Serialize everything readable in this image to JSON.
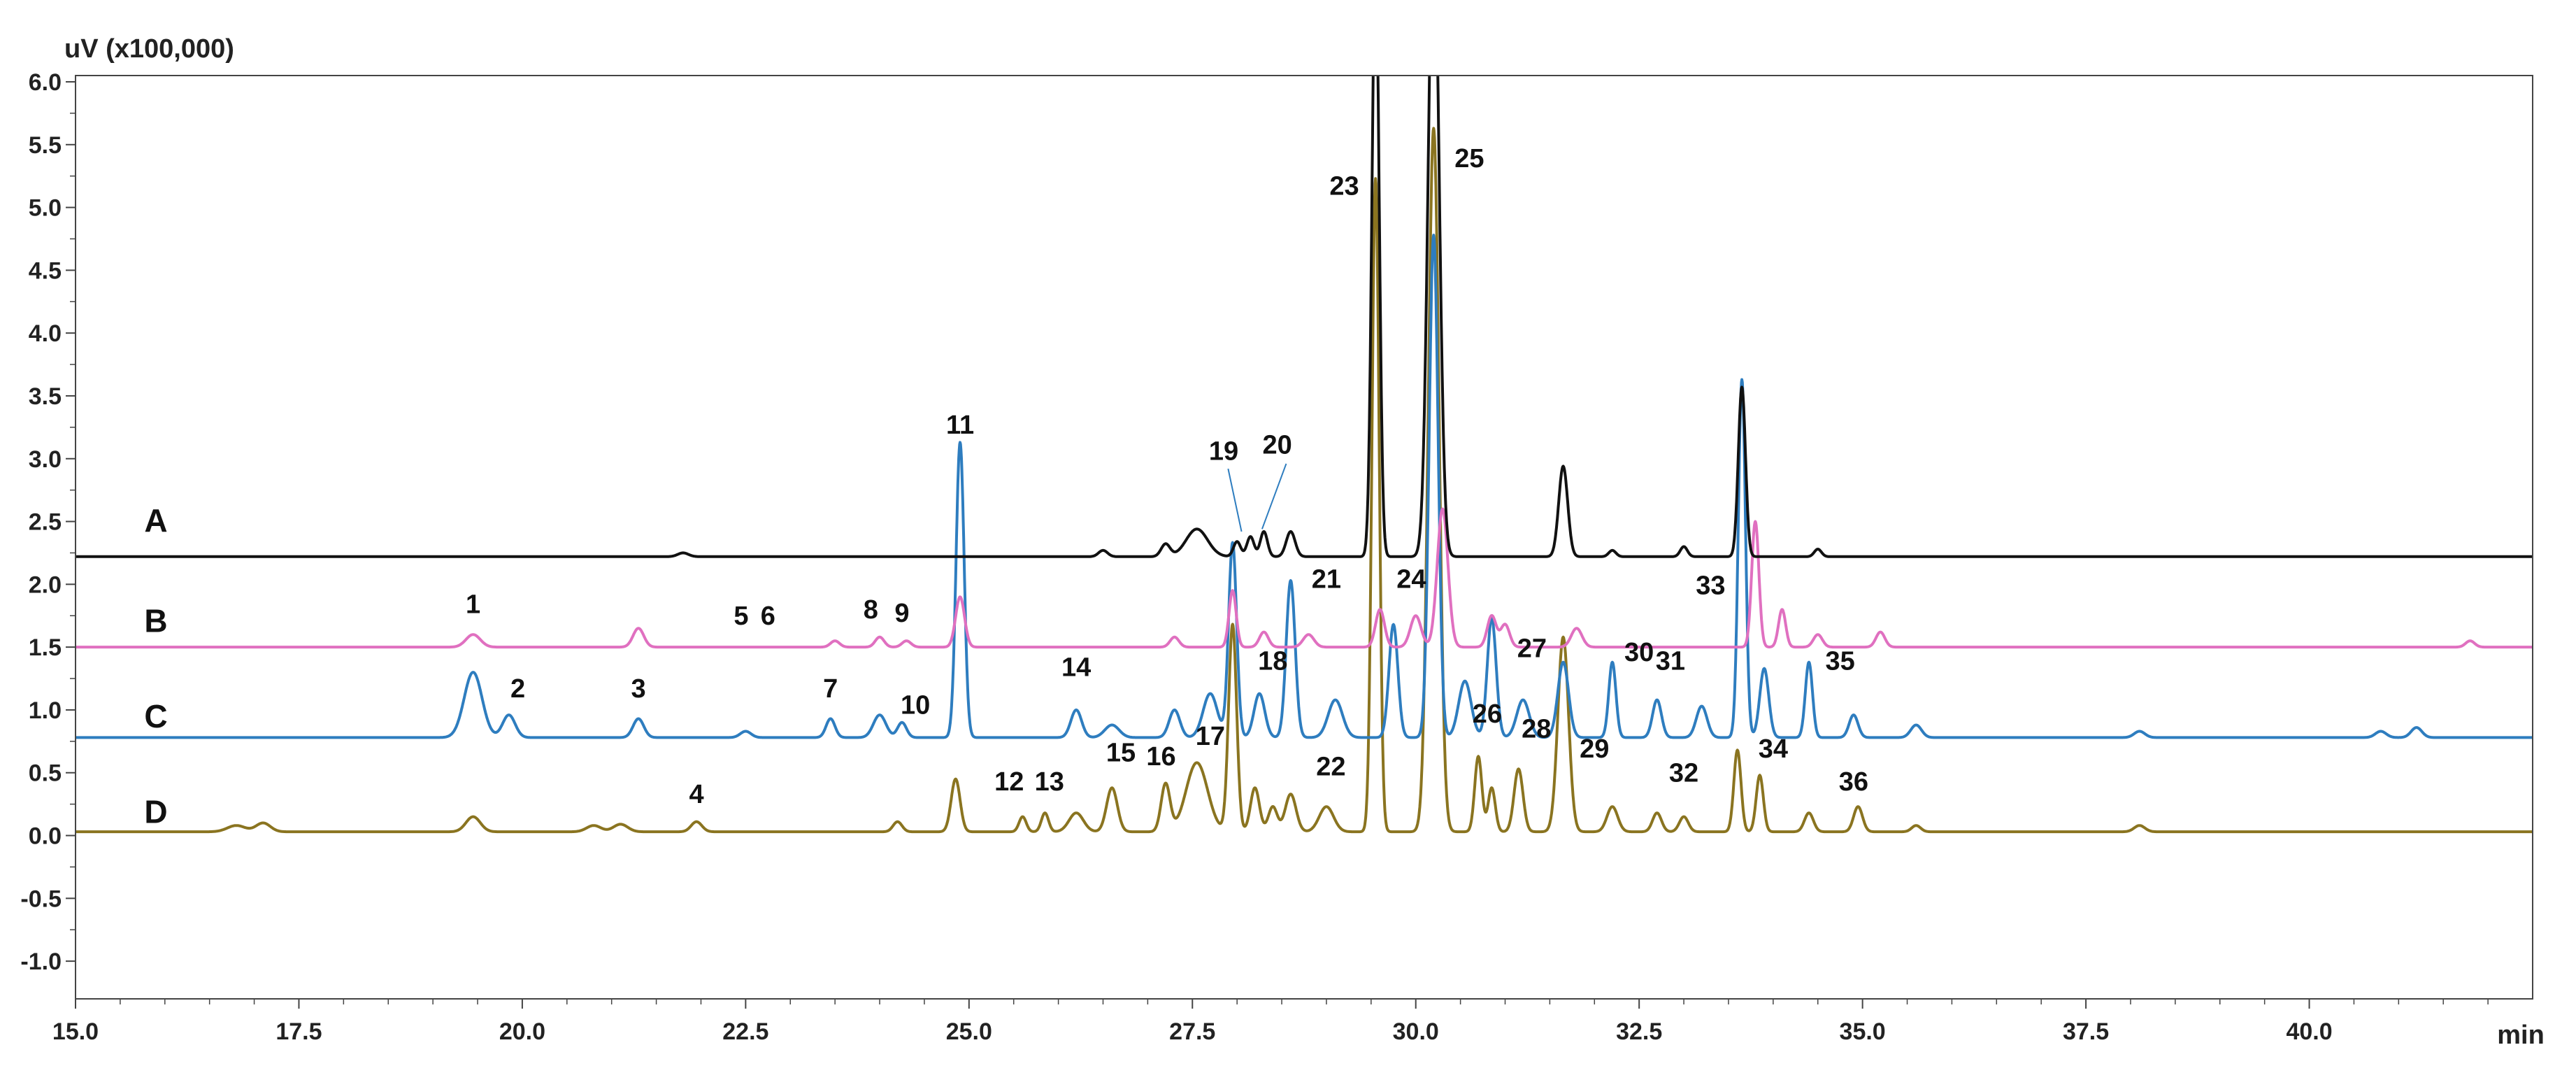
{
  "chart_data": {
    "type": "line",
    "ylabel": "uV (x100,000)",
    "xlabel": "min",
    "xlim": [
      15.0,
      42.5
    ],
    "ylim": [
      -1.3,
      6.05
    ],
    "x_ticks": [
      "15.0",
      "17.5",
      "20.0",
      "22.5",
      "25.0",
      "27.5",
      "30.0",
      "32.5",
      "35.0",
      "37.5",
      "40.0"
    ],
    "y_ticks": [
      "6.0",
      "5.5",
      "5.0",
      "4.5",
      "4.0",
      "3.5",
      "3.0",
      "2.5",
      "2.0",
      "1.5",
      "1.0",
      "0.5",
      "0.0",
      "-0.5",
      "-1.0"
    ],
    "grid": false,
    "series": [
      {
        "name": "A",
        "color": "#111111",
        "baseline": 2.22,
        "peaks": [
          [
            21.8,
            0.03,
            0.06
          ],
          [
            26.5,
            0.05,
            0.05
          ],
          [
            27.2,
            0.1,
            0.05
          ],
          [
            27.55,
            0.22,
            0.12
          ],
          [
            28.0,
            0.12,
            0.04
          ],
          [
            28.15,
            0.16,
            0.04
          ],
          [
            28.3,
            0.2,
            0.04
          ],
          [
            28.6,
            0.2,
            0.05
          ],
          [
            29.55,
            4.8,
            0.04
          ],
          [
            30.2,
            5.2,
            0.06
          ],
          [
            31.65,
            0.72,
            0.05
          ],
          [
            32.2,
            0.05,
            0.04
          ],
          [
            33.0,
            0.08,
            0.04
          ],
          [
            33.65,
            1.35,
            0.04
          ],
          [
            34.5,
            0.06,
            0.04
          ]
        ]
      },
      {
        "name": "B",
        "color": "#e070c0",
        "baseline": 1.5,
        "peaks": [
          [
            19.45,
            0.1,
            0.08
          ],
          [
            21.3,
            0.15,
            0.06
          ],
          [
            23.5,
            0.05,
            0.05
          ],
          [
            24.0,
            0.08,
            0.05
          ],
          [
            24.3,
            0.05,
            0.05
          ],
          [
            24.9,
            0.4,
            0.05
          ],
          [
            27.3,
            0.08,
            0.05
          ],
          [
            27.95,
            0.45,
            0.04
          ],
          [
            28.3,
            0.12,
            0.05
          ],
          [
            28.8,
            0.1,
            0.06
          ],
          [
            29.6,
            0.3,
            0.05
          ],
          [
            30.0,
            0.25,
            0.06
          ],
          [
            30.3,
            1.1,
            0.06
          ],
          [
            30.85,
            0.25,
            0.05
          ],
          [
            31.0,
            0.18,
            0.05
          ],
          [
            31.8,
            0.15,
            0.06
          ],
          [
            33.8,
            1.0,
            0.04
          ],
          [
            34.1,
            0.3,
            0.04
          ],
          [
            34.5,
            0.1,
            0.05
          ],
          [
            35.2,
            0.12,
            0.05
          ],
          [
            41.8,
            0.05,
            0.05
          ]
        ]
      },
      {
        "name": "C",
        "color": "#2e7dbf",
        "baseline": 0.78,
        "peaks": [
          [
            19.45,
            0.52,
            0.1
          ],
          [
            19.85,
            0.18,
            0.07
          ],
          [
            21.3,
            0.15,
            0.06
          ],
          [
            22.5,
            0.05,
            0.06
          ],
          [
            23.45,
            0.15,
            0.05
          ],
          [
            24.0,
            0.18,
            0.07
          ],
          [
            24.25,
            0.12,
            0.05
          ],
          [
            24.9,
            2.35,
            0.045
          ],
          [
            26.2,
            0.22,
            0.06
          ],
          [
            26.6,
            0.1,
            0.08
          ],
          [
            27.3,
            0.22,
            0.06
          ],
          [
            27.7,
            0.35,
            0.08
          ],
          [
            27.95,
            1.55,
            0.045
          ],
          [
            28.25,
            0.35,
            0.06
          ],
          [
            28.6,
            1.25,
            0.05
          ],
          [
            29.1,
            0.3,
            0.08
          ],
          [
            29.75,
            0.9,
            0.05
          ],
          [
            30.2,
            4.0,
            0.05
          ],
          [
            30.55,
            0.45,
            0.07
          ],
          [
            30.85,
            0.95,
            0.05
          ],
          [
            31.2,
            0.3,
            0.07
          ],
          [
            31.65,
            0.6,
            0.06
          ],
          [
            32.2,
            0.6,
            0.04
          ],
          [
            32.7,
            0.3,
            0.05
          ],
          [
            33.2,
            0.25,
            0.06
          ],
          [
            33.65,
            2.85,
            0.04
          ],
          [
            33.9,
            0.55,
            0.05
          ],
          [
            34.4,
            0.6,
            0.04
          ],
          [
            34.9,
            0.18,
            0.05
          ],
          [
            35.6,
            0.1,
            0.06
          ],
          [
            38.1,
            0.05,
            0.06
          ],
          [
            40.8,
            0.05,
            0.06
          ],
          [
            41.2,
            0.08,
            0.06
          ]
        ]
      },
      {
        "name": "D",
        "color": "#8a7420",
        "baseline": 0.03,
        "peaks": [
          [
            16.8,
            0.05,
            0.1
          ],
          [
            17.1,
            0.07,
            0.08
          ],
          [
            19.45,
            0.12,
            0.08
          ],
          [
            20.8,
            0.05,
            0.08
          ],
          [
            21.1,
            0.06,
            0.08
          ],
          [
            21.95,
            0.08,
            0.06
          ],
          [
            24.2,
            0.08,
            0.05
          ],
          [
            24.85,
            0.42,
            0.05
          ],
          [
            25.6,
            0.12,
            0.04
          ],
          [
            25.85,
            0.15,
            0.04
          ],
          [
            26.2,
            0.15,
            0.08
          ],
          [
            26.6,
            0.35,
            0.06
          ],
          [
            27.2,
            0.38,
            0.05
          ],
          [
            27.55,
            0.55,
            0.12
          ],
          [
            27.95,
            1.65,
            0.045
          ],
          [
            28.2,
            0.35,
            0.05
          ],
          [
            28.4,
            0.2,
            0.05
          ],
          [
            28.6,
            0.3,
            0.06
          ],
          [
            29.0,
            0.2,
            0.08
          ],
          [
            29.55,
            5.2,
            0.04
          ],
          [
            30.2,
            5.6,
            0.06
          ],
          [
            30.7,
            0.6,
            0.04
          ],
          [
            30.85,
            0.35,
            0.04
          ],
          [
            31.15,
            0.5,
            0.05
          ],
          [
            31.65,
            1.55,
            0.06
          ],
          [
            32.2,
            0.2,
            0.06
          ],
          [
            32.7,
            0.15,
            0.05
          ],
          [
            33.0,
            0.12,
            0.05
          ],
          [
            33.6,
            0.65,
            0.04
          ],
          [
            33.85,
            0.45,
            0.04
          ],
          [
            34.4,
            0.15,
            0.05
          ],
          [
            34.95,
            0.2,
            0.05
          ],
          [
            35.6,
            0.05,
            0.05
          ],
          [
            38.1,
            0.05,
            0.06
          ]
        ]
      }
    ],
    "trace_labels": [
      {
        "text": "A",
        "x": 15.9,
        "y": 2.42
      },
      {
        "text": "B",
        "x": 15.9,
        "y": 1.62
      },
      {
        "text": "C",
        "x": 15.9,
        "y": 0.86
      },
      {
        "text": "D",
        "x": 15.9,
        "y": 0.1
      }
    ],
    "peak_labels": [
      {
        "text": "1",
        "x": 19.45,
        "y": 1.77
      },
      {
        "text": "2",
        "x": 19.95,
        "y": 1.1
      },
      {
        "text": "3",
        "x": 21.3,
        "y": 1.1
      },
      {
        "text": "4",
        "x": 21.95,
        "y": 0.26
      },
      {
        "text": "5",
        "x": 22.45,
        "y": 1.68
      },
      {
        "text": "6",
        "x": 22.75,
        "y": 1.68
      },
      {
        "text": "7",
        "x": 23.45,
        "y": 1.1
      },
      {
        "text": "8",
        "x": 23.9,
        "y": 1.73
      },
      {
        "text": "9",
        "x": 24.25,
        "y": 1.7
      },
      {
        "text": "10",
        "x": 24.4,
        "y": 0.97
      },
      {
        "text": "11",
        "x": 24.9,
        "y": 3.2
      },
      {
        "text": "12",
        "x": 25.45,
        "y": 0.36
      },
      {
        "text": "13",
        "x": 25.9,
        "y": 0.36
      },
      {
        "text": "14",
        "x": 26.2,
        "y": 1.27
      },
      {
        "text": "15",
        "x": 26.7,
        "y": 0.59
      },
      {
        "text": "16",
        "x": 27.15,
        "y": 0.56
      },
      {
        "text": "17",
        "x": 27.7,
        "y": 0.72
      },
      {
        "text": "18",
        "x": 28.4,
        "y": 1.32
      },
      {
        "text": "19",
        "x": 27.85,
        "y": 2.99
      },
      {
        "text": "20",
        "x": 28.45,
        "y": 3.04
      },
      {
        "text": "21",
        "x": 29.0,
        "y": 1.97
      },
      {
        "text": "22",
        "x": 29.05,
        "y": 0.48
      },
      {
        "text": "23",
        "x": 29.2,
        "y": 5.1
      },
      {
        "text": "24",
        "x": 29.95,
        "y": 1.97
      },
      {
        "text": "25",
        "x": 30.6,
        "y": 5.32
      },
      {
        "text": "26",
        "x": 30.8,
        "y": 0.9
      },
      {
        "text": "27",
        "x": 31.3,
        "y": 1.42
      },
      {
        "text": "28",
        "x": 31.35,
        "y": 0.78
      },
      {
        "text": "29",
        "x": 32.0,
        "y": 0.62
      },
      {
        "text": "30",
        "x": 32.5,
        "y": 1.39
      },
      {
        "text": "31",
        "x": 32.85,
        "y": 1.32
      },
      {
        "text": "32",
        "x": 33.0,
        "y": 0.43
      },
      {
        "text": "33",
        "x": 33.3,
        "y": 1.92
      },
      {
        "text": "34",
        "x": 34.0,
        "y": 0.62
      },
      {
        "text": "35",
        "x": 34.75,
        "y": 1.32
      },
      {
        "text": "36",
        "x": 34.9,
        "y": 0.36
      }
    ],
    "leader_lines": [
      {
        "from": [
          27.9,
          2.92
        ],
        "to": [
          28.05,
          2.42
        ]
      },
      {
        "from": [
          28.55,
          2.96
        ],
        "to": [
          28.28,
          2.44
        ]
      }
    ]
  }
}
